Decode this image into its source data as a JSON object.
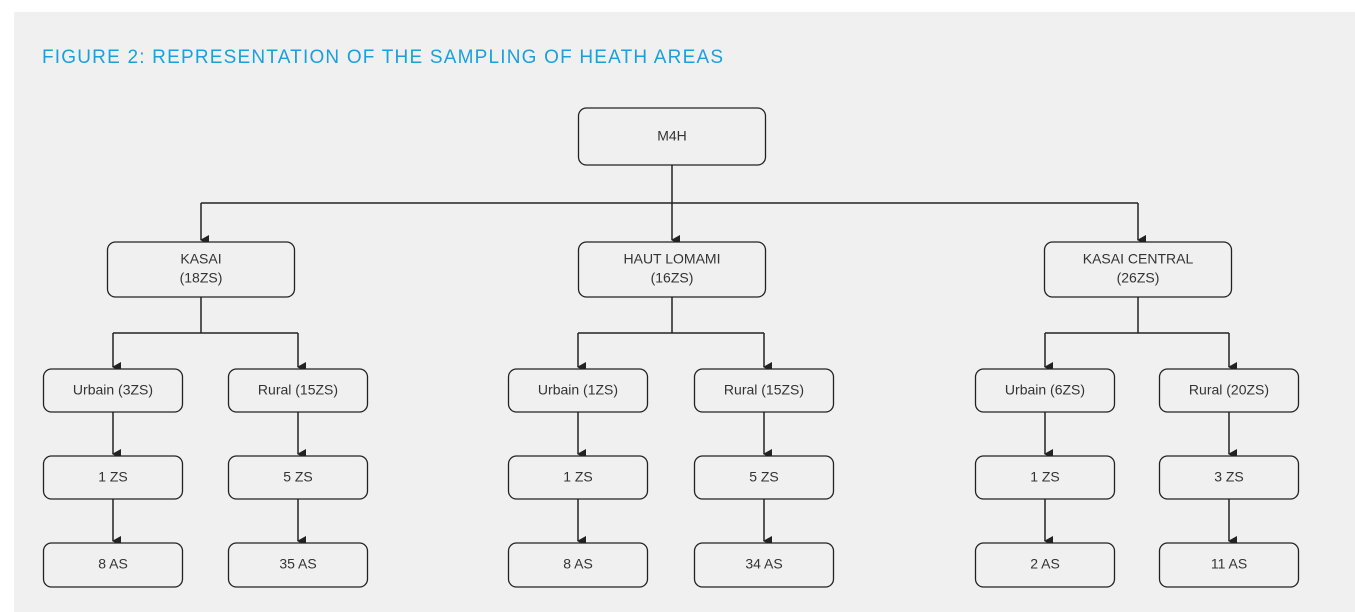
{
  "title": "FIGURE 2: REPRESENTATION OF THE SAMPLING OF HEATH AREAS",
  "root": {
    "label": "M4H"
  },
  "regions": [
    {
      "label": [
        "KASAI",
        "(18ZS)"
      ],
      "branches": [
        {
          "label": "Urbain (3ZS)",
          "zs": "1 ZS",
          "as": "8 AS"
        },
        {
          "label": "Rural (15ZS)",
          "zs": "5 ZS",
          "as": "35 AS"
        }
      ]
    },
    {
      "label": [
        "HAUT LOMAMI",
        "(16ZS)"
      ],
      "branches": [
        {
          "label": "Urbain (1ZS)",
          "zs": "1 ZS",
          "as": "8 AS"
        },
        {
          "label": "Rural (15ZS)",
          "zs": "5 ZS",
          "as": "34 AS"
        }
      ]
    },
    {
      "label": [
        "KASAI CENTRAL",
        "(26ZS)"
      ],
      "branches": [
        {
          "label": "Urbain (6ZS)",
          "zs": "1 ZS",
          "as": "2 AS"
        },
        {
          "label": "Rural (20ZS)",
          "zs": "3 ZS",
          "as": "11 AS"
        }
      ]
    }
  ]
}
